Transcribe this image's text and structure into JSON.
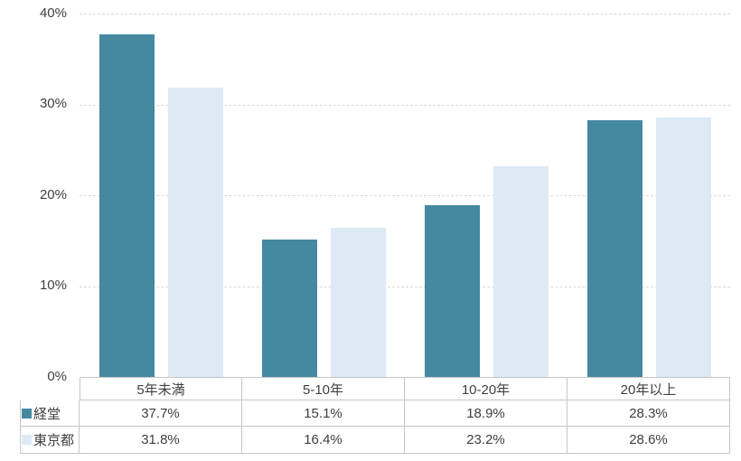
{
  "chart_data": {
    "type": "bar",
    "title": "",
    "categories": [
      "5年未満",
      "5-10年",
      "10-20年",
      "20年以上"
    ],
    "series": [
      {
        "name": "経堂",
        "color": "#4589a1",
        "values": [
          37.7,
          15.1,
          18.9,
          28.3
        ]
      },
      {
        "name": "東京都",
        "color": "#dde9f5",
        "values": [
          31.8,
          16.4,
          23.2,
          28.6
        ]
      }
    ],
    "xlabel": "",
    "ylabel": "",
    "ylim": [
      0,
      40
    ],
    "ytick_step": 10,
    "grid": true,
    "gridline_style": "dashed",
    "legend_position": "data-table-left"
  },
  "y_axis": {
    "labels": [
      "40%",
      "30%",
      "20%",
      "10%",
      "0%"
    ]
  },
  "table": {
    "rows": [
      {
        "name": "経堂",
        "values": [
          "37.7%",
          "15.1%",
          "18.9%",
          "28.3%"
        ]
      },
      {
        "name": "東京都",
        "values": [
          "31.8%",
          "16.4%",
          "23.2%",
          "28.6%"
        ]
      }
    ]
  },
  "colors": {
    "series_1": "#4589a1",
    "series_2": "#dde9f5",
    "gridline": "#d9d9d9",
    "table_border": "#c6c6c6",
    "text": "#404040",
    "background": "#ffffff"
  }
}
